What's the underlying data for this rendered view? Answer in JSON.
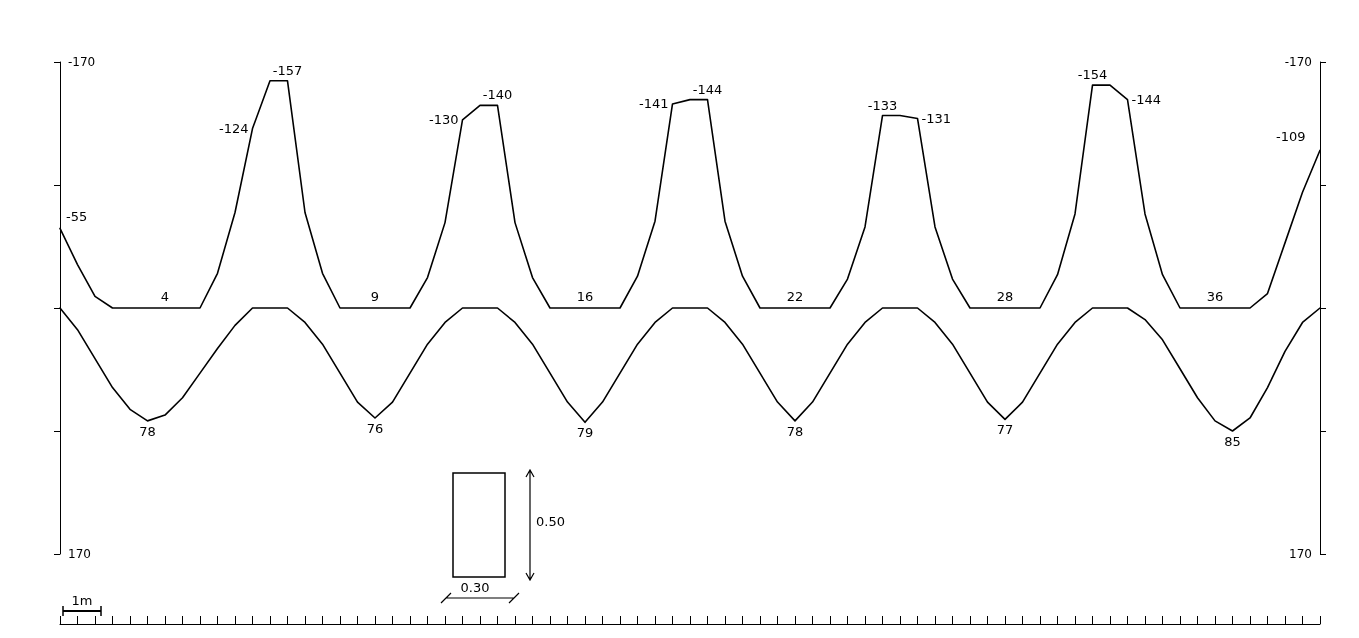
{
  "chart_data": {
    "type": "line",
    "categories": [
      null,
      null,
      null,
      null,
      null,
      null,
      null,
      null,
      null,
      null,
      null,
      null,
      null,
      null,
      null,
      null,
      null,
      null,
      null,
      null,
      null,
      null,
      null,
      null,
      null,
      null,
      null,
      null,
      null,
      null,
      null,
      null,
      null,
      null,
      null,
      null,
      null,
      null,
      null,
      null,
      null,
      null,
      null,
      null,
      null,
      null,
      null,
      null,
      null,
      null,
      null,
      null,
      null,
      null,
      null,
      null,
      null,
      null,
      null,
      null,
      null,
      null,
      null,
      null,
      null,
      null,
      null,
      null,
      null,
      null,
      null,
      null,
      null
    ],
    "series": [
      {
        "color": "#000000",
        "values": [
          -55,
          -30,
          -8,
          0,
          0,
          0,
          0,
          0,
          0,
          -24,
          -66,
          -124,
          -157,
          -157,
          -66,
          -24,
          0,
          0,
          0,
          0,
          0,
          -21,
          -59,
          -130,
          -140,
          -140,
          -59,
          -21,
          0,
          0,
          0,
          0,
          0,
          -22,
          -60,
          -141,
          -144,
          -144,
          -60,
          -22,
          0,
          0,
          0,
          0,
          0,
          -20,
          -56,
          -133,
          -133,
          -131,
          -56,
          -20,
          0,
          0,
          0,
          0,
          0,
          -23,
          -65,
          -154,
          -154,
          -144,
          -65,
          -23,
          0,
          0,
          0,
          0,
          0,
          -10,
          -45,
          -80,
          -109
        ],
        "value_labels": [
          "-55",
          null,
          null,
          null,
          null,
          null,
          null,
          null,
          null,
          null,
          null,
          "-124",
          null,
          "-157",
          null,
          null,
          null,
          null,
          null,
          null,
          null,
          null,
          null,
          "-130",
          null,
          "-140",
          null,
          null,
          null,
          null,
          null,
          null,
          null,
          null,
          null,
          "-141",
          null,
          "-144",
          null,
          null,
          null,
          null,
          null,
          null,
          null,
          null,
          null,
          "-133",
          null,
          "-131",
          null,
          null,
          null,
          null,
          null,
          null,
          null,
          null,
          null,
          "-154",
          null,
          "-144",
          null,
          null,
          null,
          null,
          null,
          null,
          null,
          null,
          null,
          null,
          "-109"
        ]
      },
      {
        "color": "#000000",
        "values": [
          0,
          15,
          35,
          55,
          70,
          78,
          74,
          62,
          45,
          28,
          12,
          0,
          0,
          0,
          10,
          25,
          45,
          65,
          76,
          65,
          45,
          25,
          10,
          0,
          0,
          0,
          10,
          25,
          45,
          65,
          79,
          65,
          45,
          25,
          10,
          0,
          0,
          0,
          10,
          25,
          45,
          65,
          78,
          65,
          45,
          25,
          10,
          0,
          0,
          0,
          10,
          25,
          45,
          65,
          77,
          65,
          45,
          25,
          10,
          0,
          0,
          0,
          8,
          22,
          42,
          62,
          78,
          85,
          76,
          55,
          30,
          10,
          0
        ],
        "value_labels": [
          null,
          null,
          null,
          null,
          null,
          "78",
          null,
          null,
          null,
          null,
          null,
          null,
          null,
          null,
          null,
          null,
          null,
          null,
          "76",
          null,
          null,
          null,
          null,
          null,
          null,
          null,
          null,
          null,
          null,
          null,
          "79",
          null,
          null,
          null,
          null,
          null,
          null,
          null,
          null,
          null,
          null,
          null,
          "78",
          null,
          null,
          null,
          null,
          null,
          null,
          null,
          null,
          null,
          null,
          null,
          "77",
          null,
          null,
          null,
          null,
          null,
          null,
          null,
          null,
          null,
          null,
          null,
          null,
          "85",
          null,
          null,
          null,
          null,
          null
        ]
      }
    ],
    "ylim": [
      170,
      -170
    ],
    "yticks": [
      -170,
      {
        "value": -85,
        "label": null
      },
      {
        "value": 0,
        "label": null
      },
      {
        "value": 85,
        "label": null
      },
      170
    ],
    "y2lim": [
      170,
      -170
    ],
    "y2ticks": [
      -170,
      {
        "value": -85,
        "label": null
      },
      {
        "value": 0,
        "label": null
      },
      {
        "value": 85,
        "label": null
      },
      170
    ],
    "annotations": [
      "4",
      "9",
      "16",
      "22",
      "28",
      "36",
      "1m",
      "0.50",
      "0.30"
    ],
    "tick_labels": "y",
    "grid": false,
    "marker": "none",
    "line_style": "solid"
  }
}
